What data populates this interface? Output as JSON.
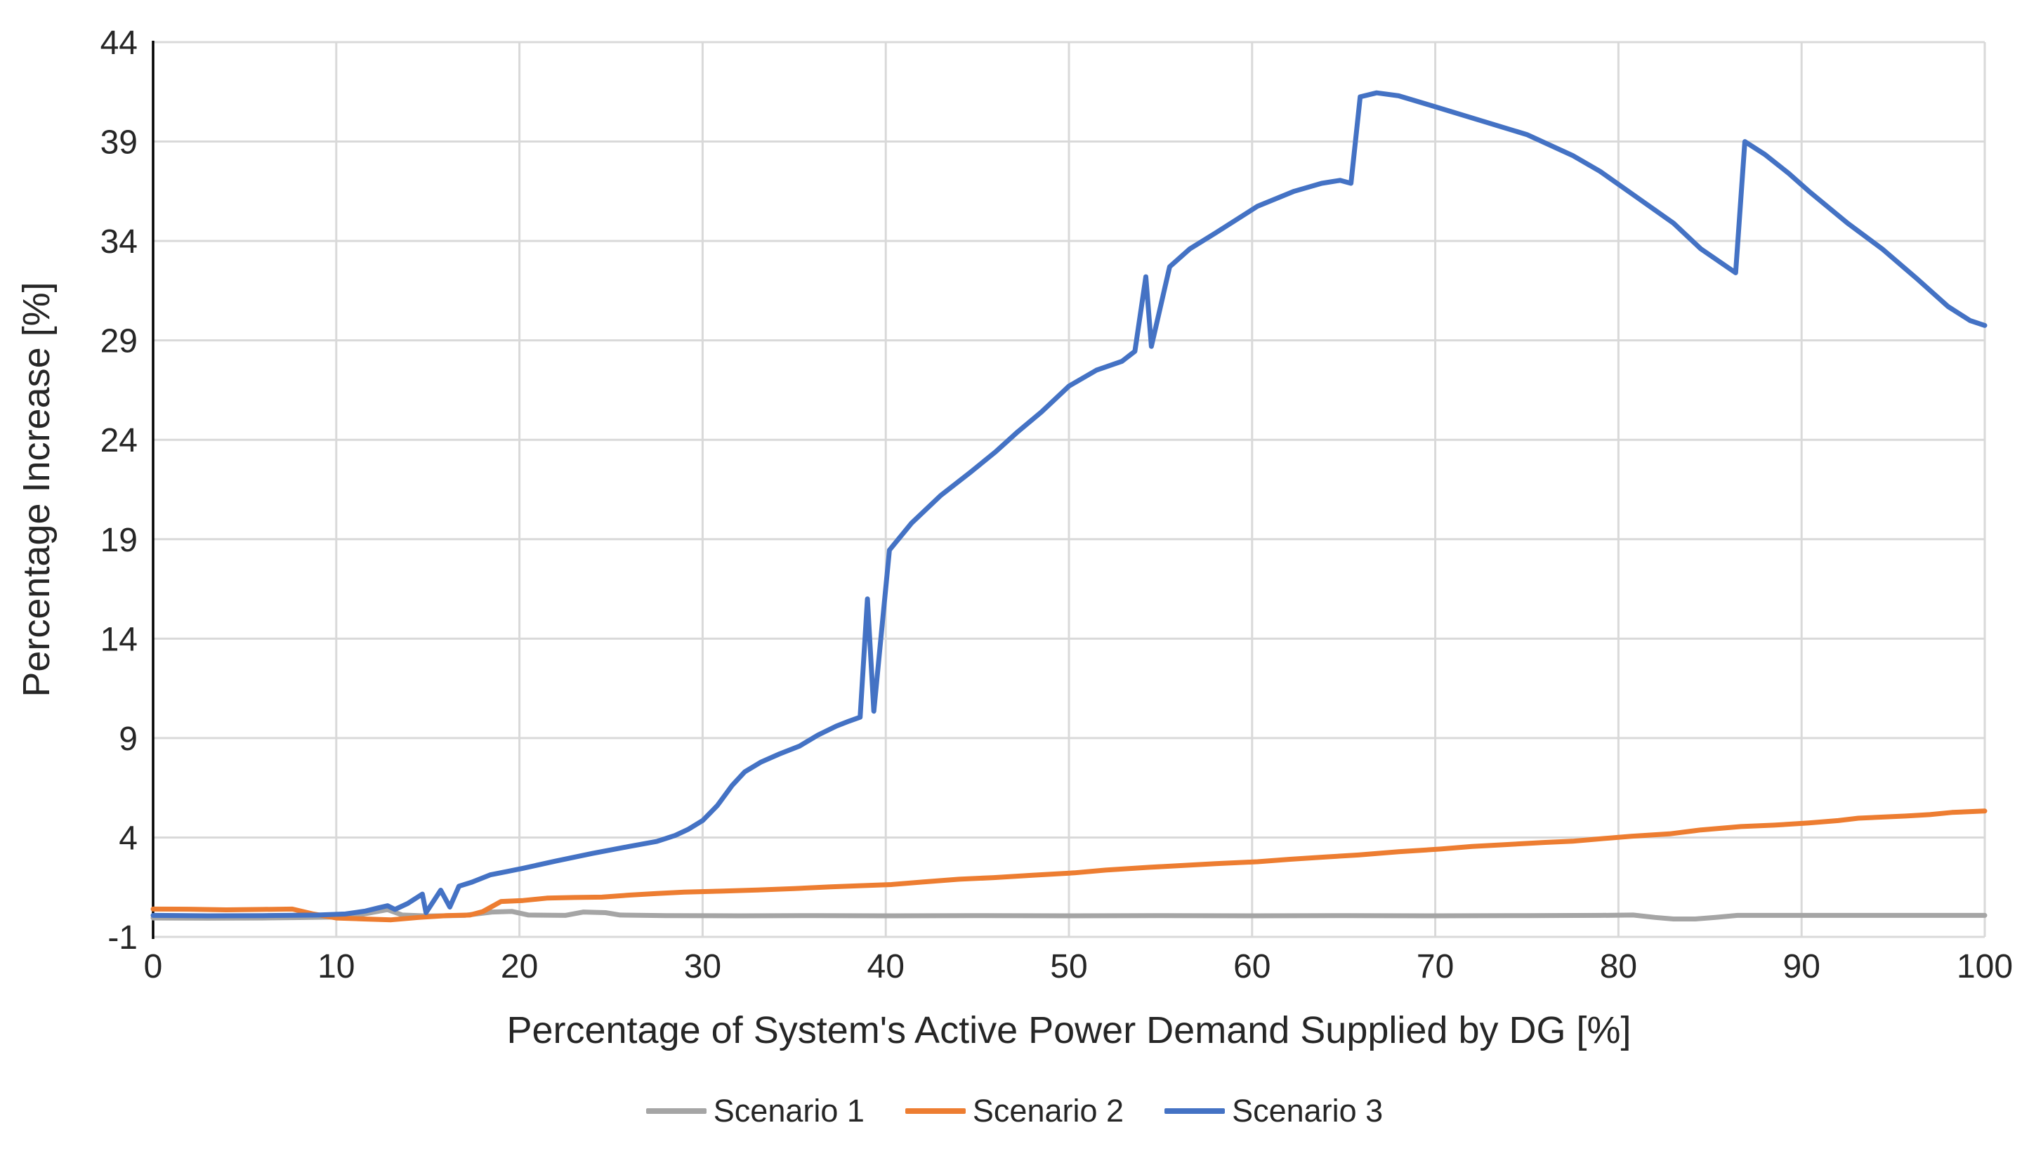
{
  "chart_data": {
    "type": "line",
    "title": "",
    "xlabel": "Percentage of System's Active Power Demand Supplied by DG [%]",
    "ylabel": "Percentage Increase [%]",
    "xlim": [
      0,
      100
    ],
    "ylim": [
      -1,
      44
    ],
    "xticks": [
      0,
      10,
      20,
      30,
      40,
      50,
      60,
      70,
      80,
      90,
      100
    ],
    "yticks": [
      -1,
      4,
      9,
      14,
      19,
      24,
      29,
      34,
      39,
      44
    ],
    "grid": true,
    "legend_position": "bottom-center",
    "colors": {
      "grid": "#D9D9D9",
      "axis": "#000000",
      "text": "#262626",
      "background": "#FFFFFF"
    },
    "series": [
      {
        "name": "Scenario 1",
        "color": "#A5A5A5",
        "points": [
          [
            0,
            -0.05
          ],
          [
            3,
            -0.06
          ],
          [
            6,
            -0.05
          ],
          [
            8,
            -0.03
          ],
          [
            10,
            0.0
          ],
          [
            11.5,
            0.15
          ],
          [
            12.8,
            0.37
          ],
          [
            13.6,
            0.1
          ],
          [
            15,
            0.05
          ],
          [
            17,
            0.08
          ],
          [
            18.5,
            0.25
          ],
          [
            19.6,
            0.28
          ],
          [
            20.5,
            0.1
          ],
          [
            22.5,
            0.08
          ],
          [
            23.5,
            0.25
          ],
          [
            24.7,
            0.22
          ],
          [
            25.5,
            0.1
          ],
          [
            28,
            0.07
          ],
          [
            32,
            0.06
          ],
          [
            36,
            0.07
          ],
          [
            40,
            0.06
          ],
          [
            45,
            0.07
          ],
          [
            50,
            0.06
          ],
          [
            55,
            0.07
          ],
          [
            60,
            0.06
          ],
          [
            65,
            0.07
          ],
          [
            70,
            0.06
          ],
          [
            75,
            0.07
          ],
          [
            79,
            0.08
          ],
          [
            80.8,
            0.1
          ],
          [
            82,
            -0.02
          ],
          [
            83,
            -0.1
          ],
          [
            84.2,
            -0.1
          ],
          [
            85.3,
            -0.02
          ],
          [
            86.5,
            0.08
          ],
          [
            90,
            0.08
          ],
          [
            95,
            0.08
          ],
          [
            100,
            0.08
          ]
        ]
      },
      {
        "name": "Scenario 2",
        "color": "#ED7D31",
        "points": [
          [
            0,
            0.4
          ],
          [
            2,
            0.39
          ],
          [
            4,
            0.36
          ],
          [
            6,
            0.38
          ],
          [
            7.6,
            0.4
          ],
          [
            8.7,
            0.16
          ],
          [
            10,
            -0.05
          ],
          [
            11.5,
            -0.1
          ],
          [
            13,
            -0.14
          ],
          [
            14.5,
            -0.02
          ],
          [
            16,
            0.07
          ],
          [
            17.3,
            0.1
          ],
          [
            18,
            0.27
          ],
          [
            19,
            0.78
          ],
          [
            20.2,
            0.83
          ],
          [
            21.5,
            0.95
          ],
          [
            23,
            0.98
          ],
          [
            24.5,
            1.0
          ],
          [
            26,
            1.1
          ],
          [
            27.5,
            1.18
          ],
          [
            29,
            1.25
          ],
          [
            31,
            1.3
          ],
          [
            33,
            1.36
          ],
          [
            35,
            1.43
          ],
          [
            37,
            1.52
          ],
          [
            38.5,
            1.57
          ],
          [
            40.3,
            1.63
          ],
          [
            42,
            1.76
          ],
          [
            44,
            1.9
          ],
          [
            45.9,
            1.98
          ],
          [
            48,
            2.1
          ],
          [
            50.3,
            2.22
          ],
          [
            52,
            2.36
          ],
          [
            54.4,
            2.5
          ],
          [
            56,
            2.58
          ],
          [
            58,
            2.68
          ],
          [
            60.3,
            2.78
          ],
          [
            62,
            2.9
          ],
          [
            64,
            3.02
          ],
          [
            65.8,
            3.12
          ],
          [
            68,
            3.28
          ],
          [
            70.3,
            3.42
          ],
          [
            72,
            3.55
          ],
          [
            74.6,
            3.68
          ],
          [
            76,
            3.75
          ],
          [
            77.5,
            3.81
          ],
          [
            79,
            3.93
          ],
          [
            80.7,
            4.06
          ],
          [
            82.8,
            4.18
          ],
          [
            84.5,
            4.38
          ],
          [
            86.7,
            4.55
          ],
          [
            88.5,
            4.62
          ],
          [
            90.4,
            4.73
          ],
          [
            92,
            4.85
          ],
          [
            93.1,
            4.97
          ],
          [
            95.7,
            5.08
          ],
          [
            97,
            5.15
          ],
          [
            98.2,
            5.26
          ],
          [
            100,
            5.33
          ]
        ]
      },
      {
        "name": "Scenario 3",
        "color": "#4472C4",
        "points": [
          [
            0,
            0.08
          ],
          [
            3,
            0.06
          ],
          [
            6,
            0.07
          ],
          [
            9,
            0.1
          ],
          [
            10.5,
            0.15
          ],
          [
            11.6,
            0.3
          ],
          [
            12.3,
            0.46
          ],
          [
            12.8,
            0.57
          ],
          [
            13.2,
            0.38
          ],
          [
            13.9,
            0.68
          ],
          [
            14.7,
            1.15
          ],
          [
            14.9,
            0.22
          ],
          [
            15.7,
            1.35
          ],
          [
            16.2,
            0.5
          ],
          [
            16.7,
            1.55
          ],
          [
            17.4,
            1.75
          ],
          [
            18.4,
            2.12
          ],
          [
            19.3,
            2.28
          ],
          [
            20.2,
            2.45
          ],
          [
            22,
            2.82
          ],
          [
            24,
            3.2
          ],
          [
            26,
            3.55
          ],
          [
            27.5,
            3.8
          ],
          [
            28.5,
            4.1
          ],
          [
            29.2,
            4.4
          ],
          [
            30,
            4.85
          ],
          [
            30.8,
            5.6
          ],
          [
            31.6,
            6.6
          ],
          [
            32.3,
            7.3
          ],
          [
            33.2,
            7.8
          ],
          [
            34.2,
            8.2
          ],
          [
            35.3,
            8.6
          ],
          [
            36.3,
            9.15
          ],
          [
            37.3,
            9.6
          ],
          [
            38,
            9.85
          ],
          [
            38.6,
            10.05
          ],
          [
            39,
            16.0
          ],
          [
            39.35,
            10.35
          ],
          [
            40.2,
            18.45
          ],
          [
            41.4,
            19.8
          ],
          [
            43,
            21.2
          ],
          [
            44.6,
            22.35
          ],
          [
            46,
            23.4
          ],
          [
            47.2,
            24.4
          ],
          [
            48.5,
            25.4
          ],
          [
            50,
            26.7
          ],
          [
            51.5,
            27.5
          ],
          [
            52.9,
            27.95
          ],
          [
            53.6,
            28.45
          ],
          [
            54.2,
            32.2
          ],
          [
            54.5,
            28.7
          ],
          [
            55.5,
            32.7
          ],
          [
            56.6,
            33.6
          ],
          [
            58,
            34.4
          ],
          [
            60.3,
            35.75
          ],
          [
            62.3,
            36.5
          ],
          [
            63.8,
            36.9
          ],
          [
            64.8,
            37.05
          ],
          [
            65.4,
            36.9
          ],
          [
            65.9,
            41.25
          ],
          [
            66.8,
            41.45
          ],
          [
            68,
            41.3
          ],
          [
            70,
            40.75
          ],
          [
            72.5,
            40.05
          ],
          [
            75,
            39.35
          ],
          [
            77.5,
            38.3
          ],
          [
            79,
            37.5
          ],
          [
            81,
            36.2
          ],
          [
            83,
            34.9
          ],
          [
            84.5,
            33.6
          ],
          [
            86.4,
            32.4
          ],
          [
            86.9,
            39.0
          ],
          [
            88,
            38.35
          ],
          [
            89.3,
            37.4
          ],
          [
            90.4,
            36.5
          ],
          [
            92.5,
            34.9
          ],
          [
            94.4,
            33.6
          ],
          [
            96.3,
            32.1
          ],
          [
            98,
            30.7
          ],
          [
            99.2,
            30.0
          ],
          [
            100,
            29.75
          ]
        ]
      }
    ]
  }
}
